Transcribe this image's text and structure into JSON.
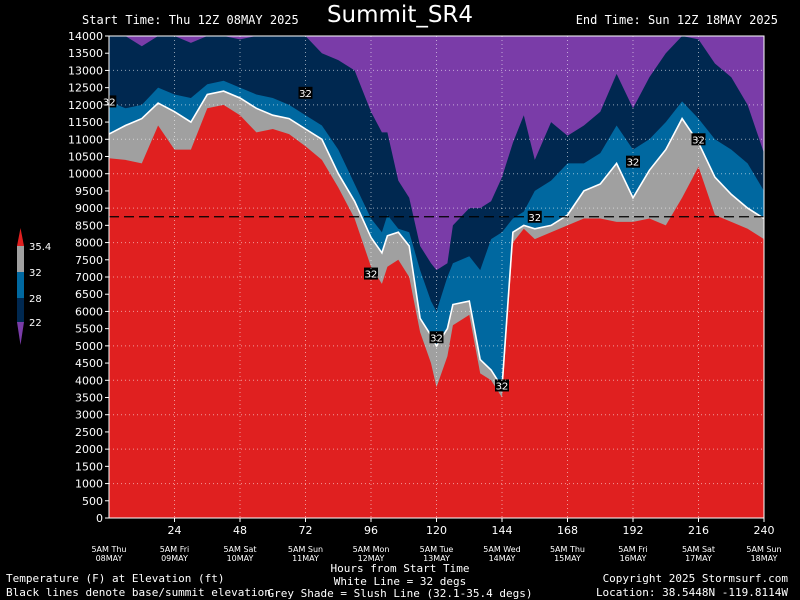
{
  "page": {
    "title": "Summit_SR4",
    "start_time": "Start Time: Thu 12Z 08MAY 2025",
    "end_time": "End Time: Sun 12Z 18MAY 2025"
  },
  "footer": {
    "left1": "Temperature (F) at Elevation (ft)",
    "left2": "Black lines denote base/summit elevation",
    "center1": "Hours from Start Time",
    "center2": "White Line = 32 degs",
    "center3": "Grey Shade = Slush Line (32.1-35.4 degs)",
    "right1": "Copyright 2025 Stormsurf.com",
    "right2": "Location: 38.5448N  -119.8114W"
  },
  "legend": {
    "labels": [
      "35.4",
      "32",
      "28",
      "22"
    ],
    "colors": [
      "#e02020",
      "#a0a0a0",
      "#0068a0",
      "#002850",
      "#7a3ca8"
    ]
  },
  "chart_data": {
    "type": "heatmap",
    "xlabel": "Hours from Start Time",
    "ylabel": "Temperature (F) at Elevation (ft)",
    "xlim": [
      0,
      240
    ],
    "ylim": [
      0,
      14000
    ],
    "grid": true,
    "x_ticks": [
      24,
      48,
      72,
      96,
      120,
      144,
      168,
      192,
      216,
      240
    ],
    "y_ticks": [
      0,
      500,
      1000,
      1500,
      2000,
      2500,
      3000,
      3500,
      4000,
      4500,
      5000,
      5500,
      6000,
      6500,
      7000,
      7500,
      8000,
      8500,
      9000,
      9500,
      10000,
      10500,
      11000,
      11500,
      12000,
      12500,
      13000,
      13500,
      14000
    ],
    "day_labels": [
      {
        "x": 0,
        "line1": "5AM Thu",
        "line2": "08MAY"
      },
      {
        "x": 24,
        "line1": "5AM Fri",
        "line2": "09MAY"
      },
      {
        "x": 48,
        "line1": "5AM Sat",
        "line2": "10MAY"
      },
      {
        "x": 72,
        "line1": "5AM Sun",
        "line2": "11MAY"
      },
      {
        "x": 96,
        "line1": "5AM Mon",
        "line2": "12MAY"
      },
      {
        "x": 120,
        "line1": "5AM Tue",
        "line2": "13MAY"
      },
      {
        "x": 144,
        "line1": "5AM Wed",
        "line2": "14MAY"
      },
      {
        "x": 168,
        "line1": "5AM Thu",
        "line2": "15MAY"
      },
      {
        "x": 192,
        "line1": "5AM Fri",
        "line2": "16MAY"
      },
      {
        "x": 216,
        "line1": "5AM Sat",
        "line2": "17MAY"
      },
      {
        "x": 240,
        "line1": "5AM Sun",
        "line2": "18MAY"
      }
    ],
    "summit_elevation": 8750,
    "bands": [
      {
        "name": "above 35.4F",
        "color": "#e02020"
      },
      {
        "name": "32.1-35.4F slush",
        "color": "#a0a0a0"
      },
      {
        "name": "28-32F",
        "color": "#0068a0"
      },
      {
        "name": "22-28F",
        "color": "#002850"
      },
      {
        "name": "below 22F",
        "color": "#7a3ca8"
      }
    ],
    "x": [
      0,
      6,
      12,
      18,
      24,
      30,
      36,
      42,
      48,
      54,
      60,
      66,
      72,
      78,
      84,
      90,
      96,
      100,
      102,
      106,
      110,
      114,
      118,
      120,
      124,
      126,
      132,
      136,
      140,
      144,
      148,
      152,
      156,
      162,
      168,
      174,
      180,
      186,
      192,
      198,
      204,
      210,
      216,
      222,
      228,
      234,
      240
    ],
    "red_top": [
      10450,
      10400,
      10300,
      11400,
      10700,
      10700,
      11900,
      12000,
      11700,
      11200,
      11300,
      11150,
      10800,
      10400,
      9600,
      8700,
      7300,
      6800,
      7300,
      7500,
      7000,
      5400,
      4500,
      3800,
      4700,
      5600,
      5900,
      4200,
      4000,
      3500,
      8000,
      8400,
      8100,
      8300,
      8500,
      8700,
      8700,
      8600,
      8600,
      8700,
      8500,
      9300,
      10200,
      8800,
      8600,
      8400,
      8100
    ],
    "white_line": [
      11150,
      11400,
      11600,
      12050,
      11800,
      11500,
      12300,
      12400,
      12200,
      11900,
      11700,
      11600,
      11300,
      11000,
      10000,
      9200,
      8150,
      7700,
      8200,
      8300,
      7900,
      5800,
      5300,
      5000,
      5500,
      6200,
      6300,
      4600,
      4300,
      3800,
      8300,
      8500,
      8400,
      8500,
      8800,
      9500,
      9700,
      10300,
      9300,
      10100,
      10700,
      11600,
      10900,
      9900,
      9400,
      9000,
      8700
    ],
    "blue28_top": [
      12100,
      11900,
      12000,
      12500,
      12300,
      12200,
      12600,
      12700,
      12500,
      12300,
      12200,
      12000,
      11700,
      11400,
      10700,
      9700,
      8700,
      8300,
      8800,
      8400,
      8300,
      7200,
      6300,
      6000,
      7000,
      7400,
      7600,
      7200,
      8100,
      8300,
      8700,
      8900,
      9500,
      9800,
      10300,
      10300,
      10600,
      11400,
      10700,
      11000,
      11500,
      12100,
      11600,
      11000,
      10700,
      10300,
      9500
    ],
    "navy_top": [
      14000,
      14000,
      13700,
      14000,
      14000,
      13800,
      14000,
      14000,
      13900,
      14000,
      14000,
      14000,
      14000,
      13500,
      13300,
      13000,
      11800,
      11200,
      11200,
      9800,
      9300,
      7900,
      7400,
      7200,
      7400,
      8500,
      9000,
      9000,
      9200,
      9900,
      10900,
      11700,
      10400,
      11500,
      11100,
      11400,
      11800,
      12900,
      11900,
      12800,
      13500,
      14000,
      13900,
      13200,
      12800,
      12000,
      10600
    ]
  }
}
